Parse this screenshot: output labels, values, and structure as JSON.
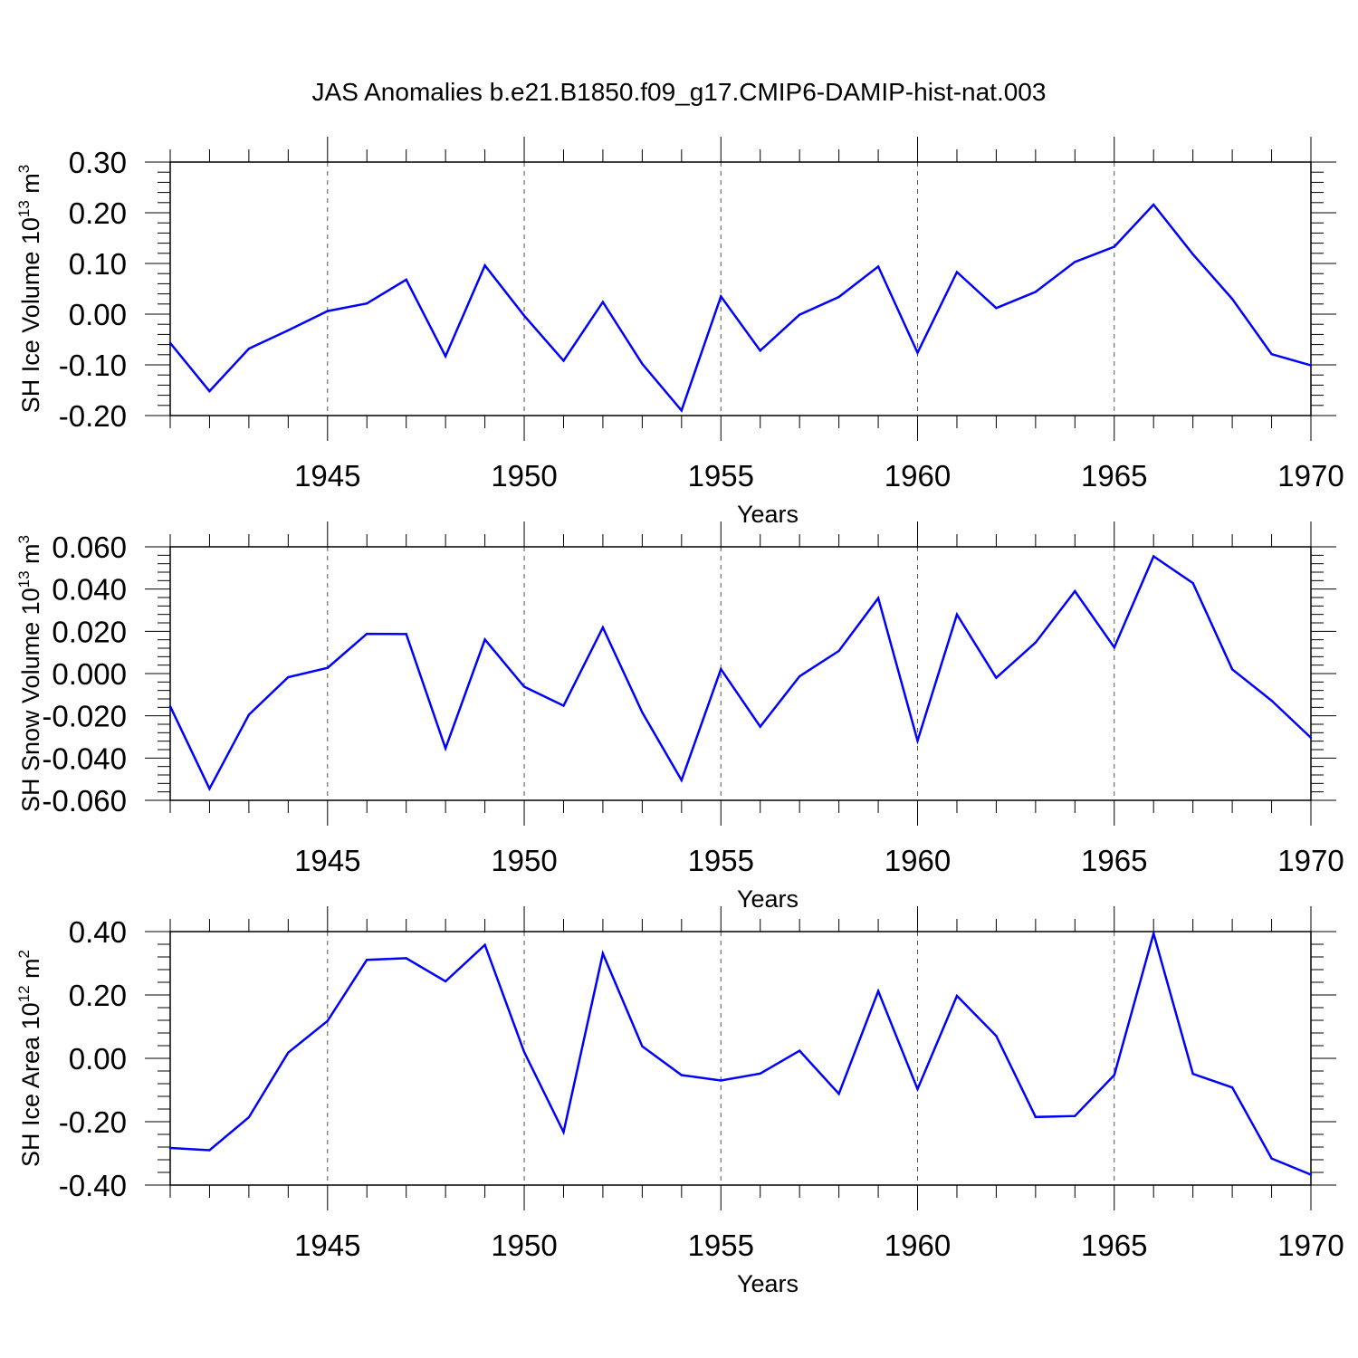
{
  "title": "JAS Anomalies b.e21.B1850.f09_g17.CMIP6-DAMIP-hist-nat.003",
  "line_color": "#0000ff",
  "chart_data": [
    {
      "type": "line",
      "xlabel": "Years",
      "ylabel_main": "SH Ice Volume 10",
      "ylabel_sup": "13",
      "ylabel_unit": "m",
      "ylabel_unit_sup": "3",
      "xlim": [
        1941,
        1970
      ],
      "ylim": [
        -0.2,
        0.3
      ],
      "x_ticks": [
        1945,
        1950,
        1955,
        1960,
        1965,
        1970
      ],
      "y_ticks": [
        -0.2,
        -0.1,
        0.0,
        0.1,
        0.2,
        0.3
      ],
      "y_tick_labels": [
        "-0.20",
        "-0.10",
        "0.00",
        "0.10",
        "0.20",
        "0.30"
      ],
      "grid": "vertical dashed at major x ticks",
      "x": [
        1941,
        1942,
        1943,
        1944,
        1945,
        1946,
        1947,
        1948,
        1949,
        1950,
        1951,
        1952,
        1953,
        1954,
        1955,
        1956,
        1957,
        1958,
        1959,
        1960,
        1961,
        1962,
        1963,
        1964,
        1965,
        1966,
        1967,
        1968,
        1969,
        1970
      ],
      "values": [
        -0.057,
        -0.152,
        -0.068,
        -0.032,
        0.006,
        0.021,
        0.068,
        -0.083,
        0.096,
        -0.003,
        -0.092,
        0.024,
        -0.098,
        -0.19,
        0.035,
        -0.072,
        -0.001,
        0.034,
        0.094,
        -0.076,
        0.083,
        0.012,
        0.044,
        0.103,
        0.133,
        0.216,
        0.118,
        0.03,
        -0.079,
        -0.101
      ]
    },
    {
      "type": "line",
      "xlabel": "Years",
      "ylabel_main": "SH Snow Volume 10",
      "ylabel_sup": "13",
      "ylabel_unit": "m",
      "ylabel_unit_sup": "3",
      "xlim": [
        1941,
        1970
      ],
      "ylim": [
        -0.06,
        0.06
      ],
      "x_ticks": [
        1945,
        1950,
        1955,
        1960,
        1965,
        1970
      ],
      "y_ticks": [
        -0.06,
        -0.04,
        -0.02,
        0.0,
        0.02,
        0.04,
        0.06
      ],
      "y_tick_labels": [
        "-0.060",
        "-0.040",
        "-0.020",
        "0.000",
        "0.020",
        "0.040",
        "0.060"
      ],
      "grid": "vertical dashed at major x ticks",
      "x": [
        1941,
        1942,
        1943,
        1944,
        1945,
        1946,
        1947,
        1948,
        1949,
        1950,
        1951,
        1952,
        1953,
        1954,
        1955,
        1956,
        1957,
        1958,
        1959,
        1960,
        1961,
        1962,
        1963,
        1964,
        1965,
        1966,
        1967,
        1968,
        1969,
        1970
      ],
      "values": [
        -0.0155,
        -0.0545,
        -0.0195,
        -0.0017,
        0.0027,
        0.0188,
        0.0187,
        -0.0354,
        0.0161,
        -0.0062,
        -0.0152,
        0.0218,
        -0.0184,
        -0.0505,
        0.0021,
        -0.0251,
        -0.0013,
        0.0107,
        0.0357,
        -0.0318,
        0.028,
        -0.002,
        0.0147,
        0.039,
        0.0124,
        0.0555,
        0.0428,
        0.002,
        -0.0128,
        -0.0304
      ]
    },
    {
      "type": "line",
      "xlabel": "Years",
      "ylabel_main": "SH Ice Area 10",
      "ylabel_sup": "12",
      "ylabel_unit": "m",
      "ylabel_unit_sup": "2",
      "xlim": [
        1941,
        1970
      ],
      "ylim": [
        -0.4,
        0.4
      ],
      "x_ticks": [
        1945,
        1950,
        1955,
        1960,
        1965,
        1970
      ],
      "y_ticks": [
        -0.4,
        -0.2,
        0.0,
        0.2,
        0.4
      ],
      "y_tick_labels": [
        "-0.40",
        "-0.20",
        "0.00",
        "0.20",
        "0.40"
      ],
      "grid": "vertical dashed at major x ticks",
      "x": [
        1941,
        1942,
        1943,
        1944,
        1945,
        1946,
        1947,
        1948,
        1949,
        1950,
        1951,
        1952,
        1953,
        1954,
        1955,
        1956,
        1957,
        1958,
        1959,
        1960,
        1961,
        1962,
        1963,
        1964,
        1965,
        1966,
        1967,
        1968,
        1969,
        1970
      ],
      "values": [
        -0.283,
        -0.29,
        -0.186,
        0.018,
        0.118,
        0.311,
        0.316,
        0.243,
        0.358,
        0.02,
        -0.233,
        0.331,
        0.038,
        -0.053,
        -0.07,
        -0.048,
        0.024,
        -0.112,
        0.212,
        -0.097,
        0.197,
        0.071,
        -0.185,
        -0.182,
        -0.053,
        0.394,
        -0.049,
        -0.092,
        -0.316,
        -0.367
      ]
    }
  ]
}
